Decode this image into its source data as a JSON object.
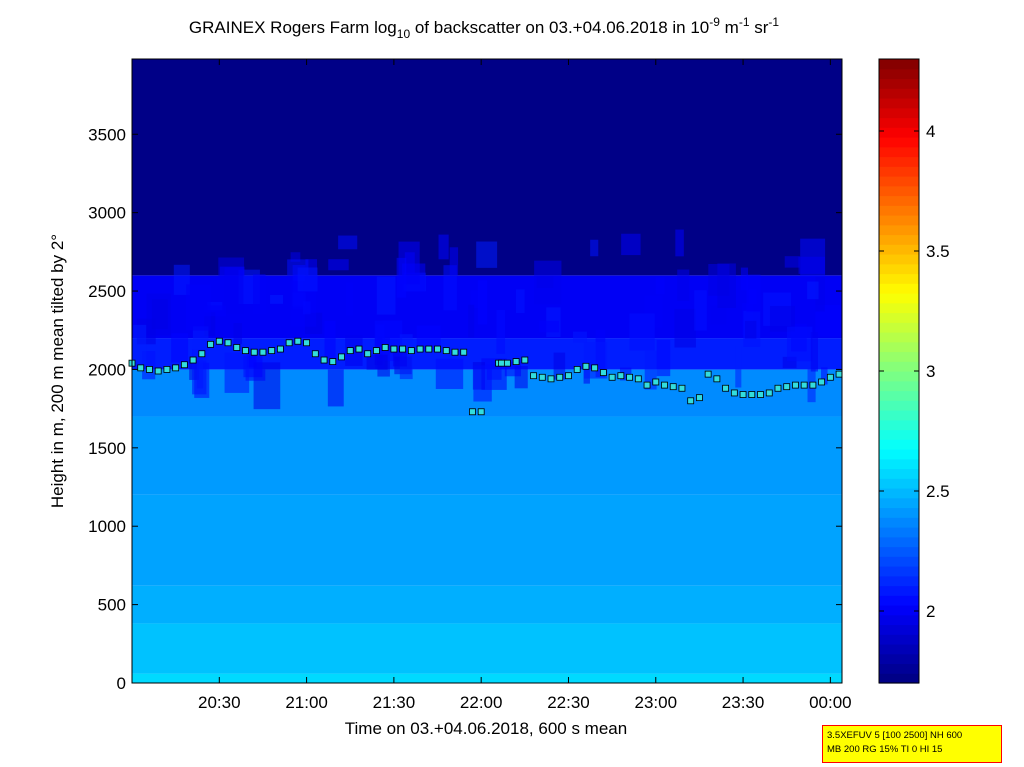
{
  "chart_data": {
    "type": "heatmap",
    "title": {
      "prefix": "GRAINEX Rogers Farm log",
      "sub": "10",
      "mid": " of backscatter on 03.+04.06.2018 in 10",
      "sup1": "-9",
      "m": " m",
      "sup2": "-1",
      "sr": " sr",
      "sup3": "-1"
    },
    "xlabel": "Time on 03.+04.06.2018, 600 s mean",
    "ylabel": "Height in m, 200 m mean tilted by 2°",
    "x_ticks": [
      "20:30",
      "21:00",
      "21:30",
      "22:00",
      "22:30",
      "23:00",
      "23:30",
      "00:00"
    ],
    "x_tick_minutes": [
      1230,
      1260,
      1290,
      1320,
      1350,
      1380,
      1410,
      1440
    ],
    "xlim_minutes": [
      1200,
      1444
    ],
    "y_ticks": [
      0,
      500,
      1000,
      1500,
      2000,
      2500,
      3000,
      3500
    ],
    "ylim": [
      0,
      3980
    ],
    "colorbar": {
      "ticks": [
        "2",
        "2.5",
        "3",
        "3.5",
        "4"
      ],
      "tick_values": [
        2,
        2.5,
        3,
        3.5,
        4
      ],
      "range": [
        1.7,
        4.3
      ],
      "colormap": "jet"
    },
    "layers": [
      {
        "from": 0,
        "to": 60,
        "value": 2.58
      },
      {
        "from": 60,
        "to": 380,
        "value": 2.52
      },
      {
        "from": 380,
        "to": 620,
        "value": 2.47
      },
      {
        "from": 620,
        "to": 1200,
        "value": 2.44
      },
      {
        "from": 1200,
        "to": 1700,
        "value": 2.42
      },
      {
        "from": 1700,
        "to": 2000,
        "value": 2.38
      },
      {
        "from": 2000,
        "to": 2200,
        "value": 2.1
      },
      {
        "from": 2200,
        "to": 2600,
        "value": 2.0
      },
      {
        "from": 2600,
        "to": 3980,
        "value": 1.72
      }
    ],
    "series": [
      {
        "marker": "square",
        "color": "#33dddd",
        "x": [
          1200,
          1203,
          1206,
          1209,
          1212,
          1215,
          1218,
          1221,
          1224,
          1227,
          1230,
          1233,
          1236,
          1239,
          1242,
          1245,
          1248,
          1251,
          1254,
          1257,
          1260,
          1263,
          1266,
          1269,
          1272,
          1275,
          1278,
          1281,
          1284,
          1287,
          1290,
          1293,
          1296,
          1299,
          1302,
          1305,
          1308,
          1311,
          1314,
          1317,
          1320,
          1326,
          1327,
          1329,
          1332,
          1335,
          1338,
          1341,
          1344,
          1347,
          1350,
          1353,
          1356,
          1359,
          1362,
          1365,
          1368,
          1371,
          1374,
          1377,
          1380,
          1383,
          1386,
          1389,
          1392,
          1395,
          1398,
          1401,
          1404,
          1407,
          1410,
          1413,
          1416,
          1419,
          1422,
          1425,
          1428,
          1431,
          1434,
          1437,
          1440,
          1443
        ],
        "y": [
          2040,
          2010,
          2000,
          1990,
          2000,
          2010,
          2030,
          2060,
          2100,
          2160,
          2180,
          2170,
          2140,
          2120,
          2110,
          2110,
          2120,
          2130,
          2170,
          2180,
          2170,
          2100,
          2060,
          2050,
          2080,
          2120,
          2130,
          2100,
          2120,
          2140,
          2130,
          2130,
          2120,
          2130,
          2130,
          2130,
          2120,
          2110,
          2110,
          1730,
          1730,
          2040,
          2040,
          2040,
          2050,
          2060,
          1960,
          1950,
          1940,
          1950,
          1960,
          2000,
          2020,
          2010,
          1980,
          1950,
          1960,
          1950,
          1940,
          1900,
          1920,
          1900,
          1890,
          1880,
          1800,
          1820,
          1970,
          1940,
          1880,
          1850,
          1840,
          1840,
          1840,
          1850,
          1880,
          1890,
          1900,
          1900,
          1900,
          1920,
          1950,
          1970
        ]
      }
    ]
  },
  "info_box": {
    "line1": "3.5XEFUV 5 [100 2500] NH 600",
    "line2": "MB 200 RG 15% TI 0 HI 15"
  }
}
